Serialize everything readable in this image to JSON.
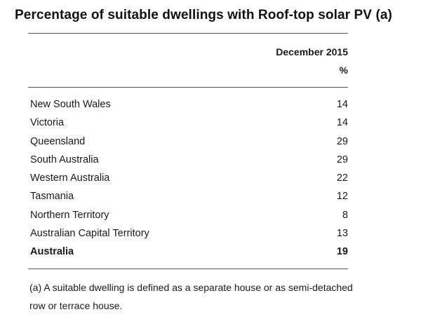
{
  "title": "Percentage of suitable dwellings with Roof-top solar PV (a)",
  "header": {
    "period": "December 2015",
    "unit": "%"
  },
  "rows": [
    {
      "label": "New South Wales",
      "value": "14"
    },
    {
      "label": "Victoria",
      "value": "14"
    },
    {
      "label": "Queensland",
      "value": "29"
    },
    {
      "label": "South Australia",
      "value": "29"
    },
    {
      "label": "Western Australia",
      "value": "22"
    },
    {
      "label": "Tasmania",
      "value": "12"
    },
    {
      "label": "Northern Territory",
      "value": "8"
    },
    {
      "label": "Australian Capital Territory",
      "value": "13"
    }
  ],
  "total": {
    "label": "Australia",
    "value": "19"
  },
  "footnote": "(a) A suitable dwelling is defined as a separate house or as semi-detached row or terrace house.",
  "chart_data": {
    "type": "table",
    "title": "Percentage of suitable dwellings with Roof-top solar PV (a)",
    "columns": [
      "",
      "December 2015"
    ],
    "unit": "%",
    "categories": [
      "New South Wales",
      "Victoria",
      "Queensland",
      "South Australia",
      "Western Australia",
      "Tasmania",
      "Northern Territory",
      "Australian Capital Territory",
      "Australia"
    ],
    "values": [
      14,
      14,
      29,
      29,
      22,
      12,
      8,
      13,
      19
    ]
  }
}
